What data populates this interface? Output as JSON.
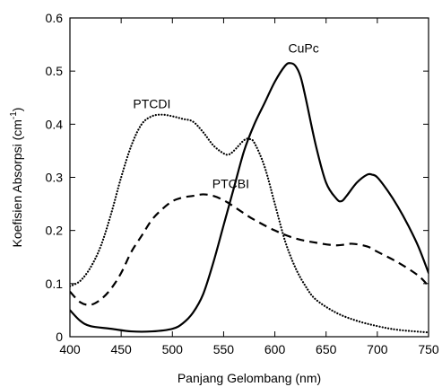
{
  "chart_data": {
    "type": "line",
    "title": "",
    "xlabel": "Panjang Gelombang (nm)",
    "ylabel_main": "Koefisien Absorpsi (cm",
    "ylabel_sup": "-1",
    "ylabel_end": ")",
    "xlim": [
      400,
      750
    ],
    "ylim": [
      0,
      0.6
    ],
    "xticks": [
      400,
      450,
      500,
      550,
      600,
      650,
      700,
      750
    ],
    "yticks": [
      0,
      0.1,
      0.2,
      0.3,
      0.4,
      0.5,
      0.6
    ],
    "ytick_labels": [
      "0",
      "0.1",
      "0.2",
      "0.3",
      "0.4",
      "0.5",
      "0.6"
    ],
    "grid": false,
    "series": [
      {
        "name": "CuPc",
        "style": "solid",
        "x": [
          400,
          410,
          420,
          440,
          460,
          480,
          500,
          510,
          520,
          530,
          540,
          550,
          560,
          570,
          580,
          590,
          600,
          610,
          615,
          620,
          625,
          630,
          640,
          650,
          660,
          665,
          670,
          680,
          690,
          695,
          700,
          710,
          720,
          730,
          740,
          750
        ],
        "y": [
          0.05,
          0.03,
          0.02,
          0.015,
          0.01,
          0.01,
          0.015,
          0.025,
          0.045,
          0.08,
          0.14,
          0.21,
          0.28,
          0.35,
          0.4,
          0.44,
          0.48,
          0.51,
          0.515,
          0.51,
          0.49,
          0.45,
          0.36,
          0.29,
          0.26,
          0.255,
          0.265,
          0.29,
          0.305,
          0.305,
          0.3,
          0.275,
          0.245,
          0.21,
          0.17,
          0.12
        ]
      },
      {
        "name": "PTCDI",
        "style": "dotted",
        "x": [
          400,
          410,
          420,
          430,
          440,
          450,
          460,
          470,
          480,
          490,
          500,
          510,
          520,
          530,
          540,
          550,
          555,
          560,
          570,
          575,
          580,
          590,
          600,
          610,
          620,
          630,
          640,
          660,
          680,
          700,
          720,
          750
        ],
        "y": [
          0.095,
          0.105,
          0.13,
          0.17,
          0.23,
          0.3,
          0.36,
          0.4,
          0.415,
          0.418,
          0.415,
          0.41,
          0.405,
          0.385,
          0.36,
          0.345,
          0.343,
          0.35,
          0.37,
          0.372,
          0.365,
          0.32,
          0.25,
          0.18,
          0.13,
          0.095,
          0.07,
          0.045,
          0.03,
          0.02,
          0.013,
          0.008
        ]
      },
      {
        "name": "PTCBI",
        "style": "dashed",
        "x": [
          400,
          410,
          420,
          430,
          440,
          450,
          460,
          470,
          480,
          490,
          500,
          510,
          520,
          530,
          540,
          550,
          560,
          570,
          580,
          600,
          620,
          640,
          660,
          675,
          690,
          700,
          720,
          740,
          750
        ],
        "y": [
          0.085,
          0.065,
          0.06,
          0.07,
          0.09,
          0.12,
          0.16,
          0.19,
          0.22,
          0.24,
          0.255,
          0.262,
          0.265,
          0.268,
          0.265,
          0.257,
          0.245,
          0.232,
          0.22,
          0.2,
          0.185,
          0.177,
          0.172,
          0.175,
          0.17,
          0.16,
          0.14,
          0.115,
          0.095
        ]
      }
    ],
    "annotations": [
      {
        "text": "CuPc",
        "x": 628,
        "y": 0.535
      },
      {
        "text": "PTCDI",
        "x": 480,
        "y": 0.43
      },
      {
        "text": "PTCBI",
        "x": 557,
        "y": 0.28
      }
    ]
  }
}
